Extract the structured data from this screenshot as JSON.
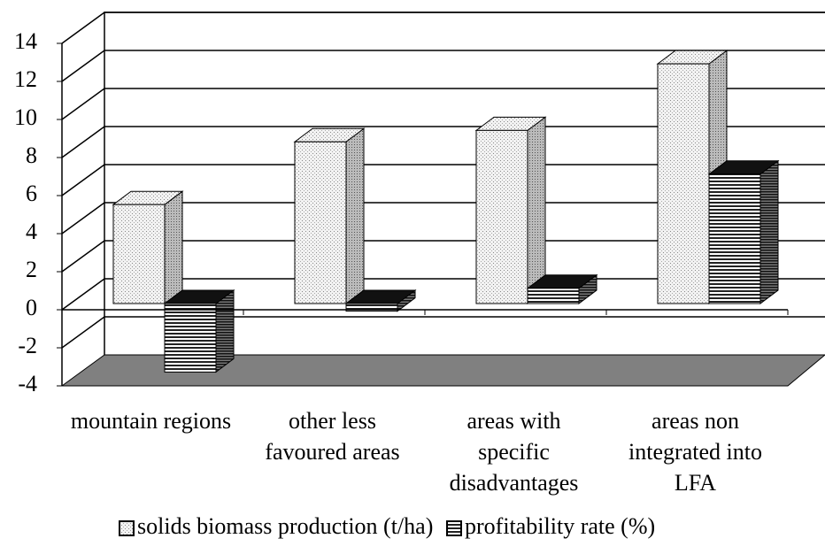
{
  "chart_data": {
    "type": "bar3d",
    "categories": [
      [
        "mountain regions"
      ],
      [
        "other less",
        "favoured areas"
      ],
      [
        "areas with",
        "specific",
        "disadvantages"
      ],
      [
        "areas non",
        "integrated into",
        "LFA"
      ]
    ],
    "series": [
      {
        "name": "solids biomass production (t/ha)",
        "color": "#e8e8e8",
        "values": [
          5.2,
          8.5,
          9.1,
          12.6
        ]
      },
      {
        "name": "profitability rate (%)",
        "color": "#555555",
        "values": [
          -3.6,
          -0.4,
          0.8,
          6.8
        ]
      }
    ],
    "ylim": [
      -4,
      14
    ],
    "yticks": [
      -4,
      -2,
      0,
      2,
      4,
      6,
      8,
      10,
      12,
      14
    ],
    "grid": true,
    "legend": "bottom"
  }
}
